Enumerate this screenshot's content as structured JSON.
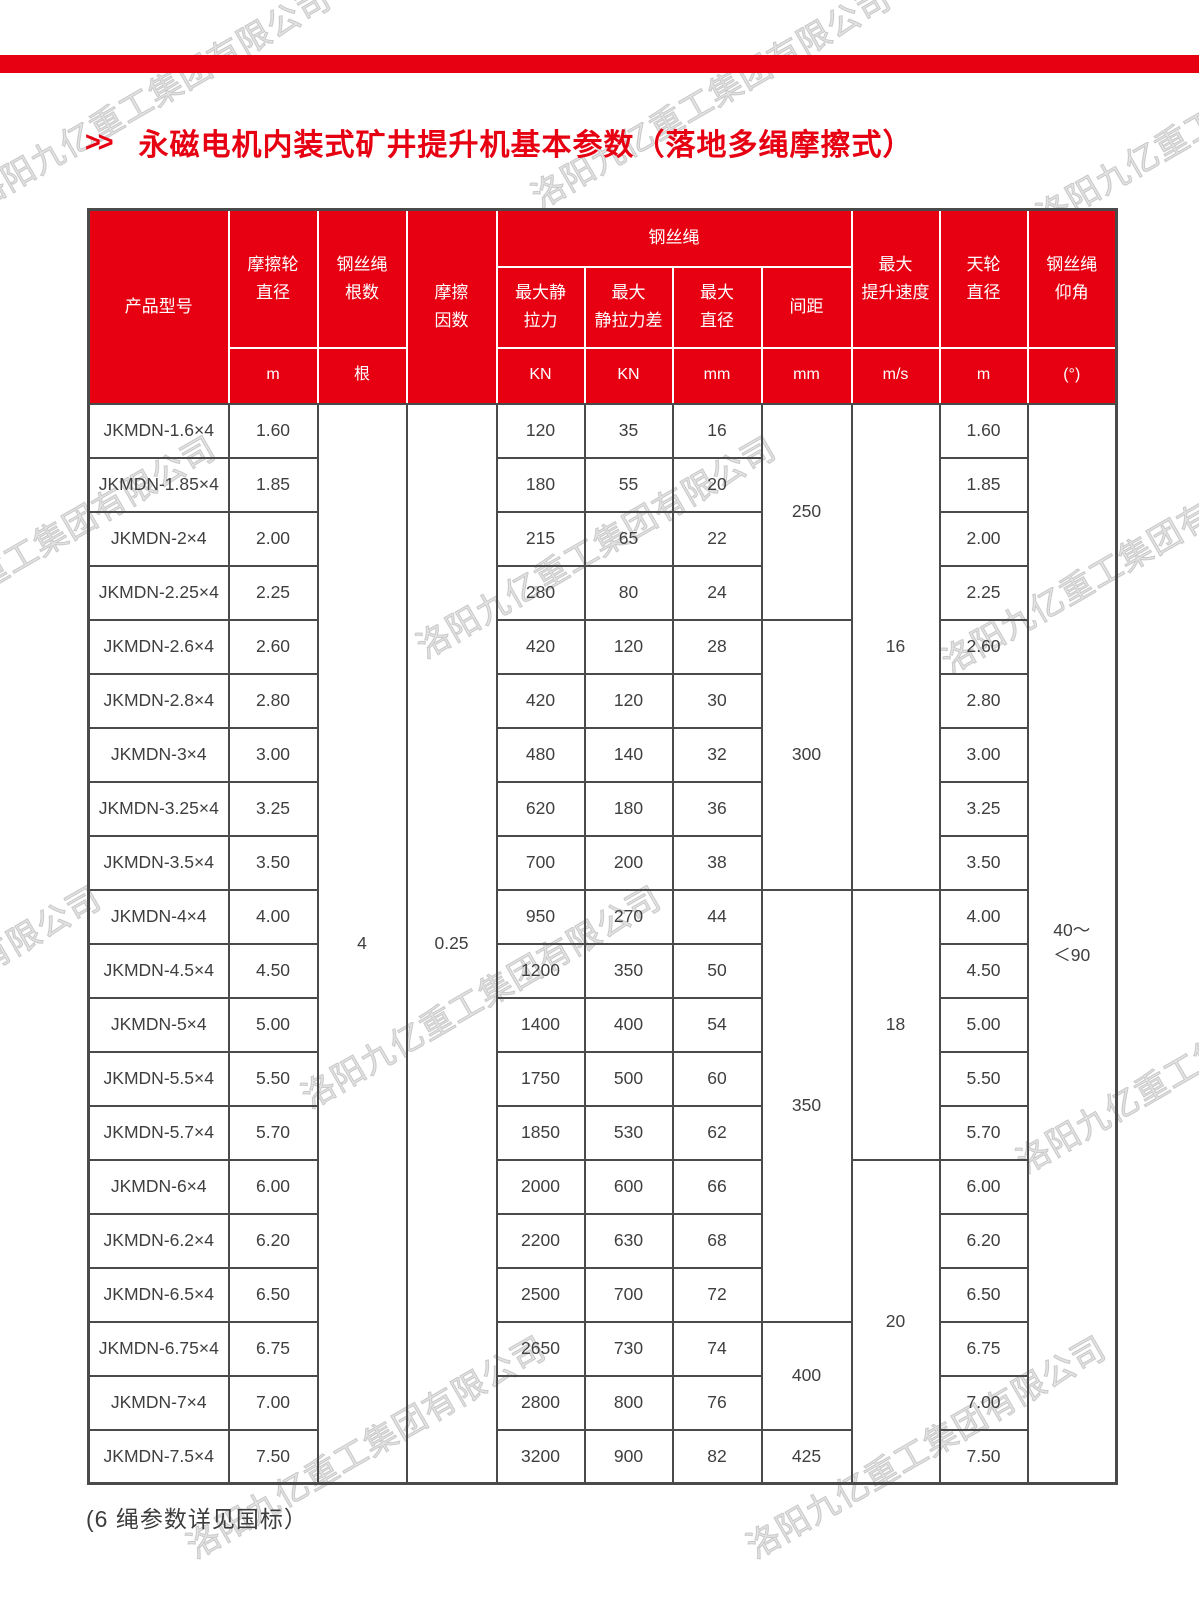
{
  "page": {
    "accent_color": "#e60012",
    "title_marker": ">>",
    "title": "永磁电机内装式矿井提升机基本参数（落地多绳摩擦式）",
    "footnote": "(6 绳参数详见国标）",
    "watermark_text": "洛阳九亿重工集团有限公司"
  },
  "table": {
    "group_header": "钢丝绳",
    "columns": {
      "model": {
        "label": "产品型号",
        "unit": ""
      },
      "wheel_diameter": {
        "label": "摩擦轮\n直径",
        "unit": "m"
      },
      "rope_count": {
        "label": "钢丝绳\n根数",
        "unit": "根"
      },
      "friction_factor": {
        "label": "摩擦\n因数",
        "unit": ""
      },
      "max_static_tension": {
        "label": "最大静\n拉力",
        "unit": "KN"
      },
      "max_static_tension_diff": {
        "label": "最大\n静拉力差",
        "unit": "KN"
      },
      "max_diameter": {
        "label": "最大\n直径",
        "unit": "mm"
      },
      "spacing": {
        "label": "间距",
        "unit": "mm"
      },
      "max_speed": {
        "label": "最大\n提升速度",
        "unit": "m/s"
      },
      "sheave_diameter": {
        "label": "天轮\n直径",
        "unit": "m"
      },
      "rope_elevation": {
        "label": "钢丝绳\n仰角",
        "unit": "(°)"
      }
    },
    "merged": {
      "rope_count": "4",
      "friction_factor": "0.25",
      "elevation": "40～\n＜90"
    },
    "spacing_groups": [
      {
        "value": "250",
        "rows": 4
      },
      {
        "value": "300",
        "rows": 5
      },
      {
        "value": "350",
        "rows": 8
      },
      {
        "value": "400",
        "rows": 2
      },
      {
        "value": "425",
        "rows": 1
      }
    ],
    "speed_groups": [
      {
        "value": "16",
        "rows": 9
      },
      {
        "value": "18",
        "rows": 5
      },
      {
        "value": "20",
        "rows": 6
      }
    ],
    "rows": [
      {
        "model": "JKMDN-1.6×4",
        "wheel": "1.60",
        "tension": "120",
        "diff": "35",
        "dia": "16",
        "sheave": "1.60"
      },
      {
        "model": "JKMDN-1.85×4",
        "wheel": "1.85",
        "tension": "180",
        "diff": "55",
        "dia": "20",
        "sheave": "1.85"
      },
      {
        "model": "JKMDN-2×4",
        "wheel": "2.00",
        "tension": "215",
        "diff": "65",
        "dia": "22",
        "sheave": "2.00"
      },
      {
        "model": "JKMDN-2.25×4",
        "wheel": "2.25",
        "tension": "280",
        "diff": "80",
        "dia": "24",
        "sheave": "2.25"
      },
      {
        "model": "JKMDN-2.6×4",
        "wheel": "2.60",
        "tension": "420",
        "diff": "120",
        "dia": "28",
        "sheave": "2.60"
      },
      {
        "model": "JKMDN-2.8×4",
        "wheel": "2.80",
        "tension": "420",
        "diff": "120",
        "dia": "30",
        "sheave": "2.80"
      },
      {
        "model": "JKMDN-3×4",
        "wheel": "3.00",
        "tension": "480",
        "diff": "140",
        "dia": "32",
        "sheave": "3.00"
      },
      {
        "model": "JKMDN-3.25×4",
        "wheel": "3.25",
        "tension": "620",
        "diff": "180",
        "dia": "36",
        "sheave": "3.25"
      },
      {
        "model": "JKMDN-3.5×4",
        "wheel": "3.50",
        "tension": "700",
        "diff": "200",
        "dia": "38",
        "sheave": "3.50"
      },
      {
        "model": "JKMDN-4×4",
        "wheel": "4.00",
        "tension": "950",
        "diff": "270",
        "dia": "44",
        "sheave": "4.00"
      },
      {
        "model": "JKMDN-4.5×4",
        "wheel": "4.50",
        "tension": "1200",
        "diff": "350",
        "dia": "50",
        "sheave": "4.50"
      },
      {
        "model": "JKMDN-5×4",
        "wheel": "5.00",
        "tension": "1400",
        "diff": "400",
        "dia": "54",
        "sheave": "5.00"
      },
      {
        "model": "JKMDN-5.5×4",
        "wheel": "5.50",
        "tension": "1750",
        "diff": "500",
        "dia": "60",
        "sheave": "5.50"
      },
      {
        "model": "JKMDN-5.7×4",
        "wheel": "5.70",
        "tension": "1850",
        "diff": "530",
        "dia": "62",
        "sheave": "5.70"
      },
      {
        "model": "JKMDN-6×4",
        "wheel": "6.00",
        "tension": "2000",
        "diff": "600",
        "dia": "66",
        "sheave": "6.00"
      },
      {
        "model": "JKMDN-6.2×4",
        "wheel": "6.20",
        "tension": "2200",
        "diff": "630",
        "dia": "68",
        "sheave": "6.20"
      },
      {
        "model": "JKMDN-6.5×4",
        "wheel": "6.50",
        "tension": "2500",
        "diff": "700",
        "dia": "72",
        "sheave": "6.50"
      },
      {
        "model": "JKMDN-6.75×4",
        "wheel": "6.75",
        "tension": "2650",
        "diff": "730",
        "dia": "74",
        "sheave": "6.75"
      },
      {
        "model": "JKMDN-7×4",
        "wheel": "7.00",
        "tension": "2800",
        "diff": "800",
        "dia": "76",
        "sheave": "7.00"
      },
      {
        "model": "JKMDN-7.5×4",
        "wheel": "7.50",
        "tension": "3200",
        "diff": "900",
        "dia": "82",
        "sheave": "7.50"
      }
    ]
  }
}
